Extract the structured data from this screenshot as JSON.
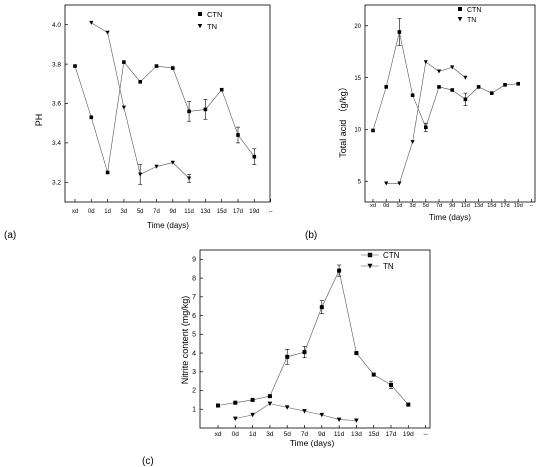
{
  "chart_data": [
    {
      "type": "line",
      "panel": "(a)",
      "title": "",
      "xlabel": "Time (days)",
      "ylabel": "PH",
      "categories": [
        "xd",
        "0d",
        "1d",
        "3d",
        "5d",
        "7d",
        "9d",
        "11d",
        "13d",
        "15d",
        "17d",
        "19d",
        "--"
      ],
      "ylim": [
        3.1,
        4.1
      ],
      "yticks": [
        "3.2",
        "3.4",
        "3.6",
        "3.8",
        "4.0"
      ],
      "yticks_values": [
        3.2,
        3.4,
        3.6,
        3.8,
        4.0
      ],
      "legend_position": "top-right",
      "series": [
        {
          "name": "CTN",
          "marker": "square",
          "x": [
            0,
            1,
            2,
            3,
            4,
            5,
            6,
            7,
            8,
            9,
            10,
            11
          ],
          "values": [
            3.79,
            3.53,
            3.25,
            3.81,
            3.71,
            3.79,
            3.78,
            3.56,
            3.57,
            3.67,
            3.44,
            3.33
          ],
          "errors": [
            0,
            0,
            0,
            0,
            0,
            0,
            0,
            0.05,
            0.05,
            0,
            0.04,
            0.04
          ]
        },
        {
          "name": "TN",
          "marker": "triangle-down",
          "x": [
            1,
            2,
            3,
            4,
            5,
            6,
            7
          ],
          "values": [
            4.01,
            3.96,
            3.58,
            3.24,
            3.28,
            3.3,
            3.22
          ],
          "errors": [
            0,
            0,
            0,
            0.05,
            0,
            0,
            0.02
          ]
        }
      ]
    },
    {
      "type": "line",
      "panel": "(b)",
      "title": "",
      "xlabel": "Time (days)",
      "ylabel": "Total acid （g/kg）",
      "categories": [
        "xd",
        "0d",
        "1d",
        "3d",
        "5d",
        "7d",
        "9d",
        "11d",
        "13d",
        "15d",
        "17d",
        "19d",
        "--"
      ],
      "ylim": [
        3,
        22
      ],
      "yticks": [
        "5",
        "10",
        "15",
        "20"
      ],
      "yticks_values": [
        5,
        10,
        15,
        20
      ],
      "legend_position": "top-right",
      "series": [
        {
          "name": "CTN",
          "marker": "square",
          "x": [
            0,
            1,
            2,
            3,
            4,
            5,
            6,
            7,
            8,
            9,
            10,
            11
          ],
          "values": [
            9.9,
            14.1,
            19.4,
            13.3,
            10.2,
            14.1,
            13.8,
            12.9,
            14.1,
            13.5,
            14.3,
            14.4
          ],
          "errors": [
            0,
            0,
            1.3,
            0,
            0.4,
            0,
            0,
            0.6,
            0,
            0,
            0,
            0
          ]
        },
        {
          "name": "TN",
          "marker": "triangle-down",
          "x": [
            1,
            2,
            3,
            4,
            5,
            6,
            7
          ],
          "values": [
            4.8,
            4.8,
            8.8,
            16.5,
            15.6,
            16.0,
            15.0
          ],
          "errors": [
            0,
            0,
            0,
            0,
            0,
            0,
            0
          ]
        }
      ]
    },
    {
      "type": "line",
      "panel": "(c)",
      "title": "",
      "xlabel": "Time (days)",
      "ylabel": "Nitrite content (mg/kg)",
      "categories": [
        "xd",
        "0d",
        "1d",
        "3d",
        "5d",
        "7d",
        "9d",
        "11d",
        "13d",
        "15d",
        "17d",
        "19d",
        "--"
      ],
      "ylim": [
        0,
        9.5
      ],
      "yticks": [
        "1",
        "2",
        "3",
        "4",
        "5",
        "6",
        "7",
        "8",
        "9"
      ],
      "yticks_values": [
        1,
        2,
        3,
        4,
        5,
        6,
        7,
        8,
        9
      ],
      "legend_position": "top-right",
      "series": [
        {
          "name": "CTN",
          "marker": "square",
          "x": [
            0,
            1,
            2,
            3,
            4,
            5,
            6,
            7,
            8,
            9,
            10,
            11
          ],
          "values": [
            1.2,
            1.35,
            1.5,
            1.7,
            3.8,
            4.05,
            6.45,
            8.4,
            4.0,
            2.85,
            2.3,
            1.25
          ],
          "errors": [
            0,
            0,
            0,
            0,
            0.4,
            0.3,
            0.35,
            0.3,
            0,
            0,
            0.2,
            0
          ]
        },
        {
          "name": "TN",
          "marker": "triangle-down",
          "x": [
            1,
            2,
            3,
            4,
            5,
            6,
            7,
            8
          ],
          "values": [
            0.5,
            0.7,
            1.3,
            1.1,
            0.9,
            0.7,
            0.45,
            0.4
          ],
          "errors": [
            0,
            0,
            0,
            0,
            0,
            0,
            0,
            0
          ]
        }
      ]
    }
  ]
}
